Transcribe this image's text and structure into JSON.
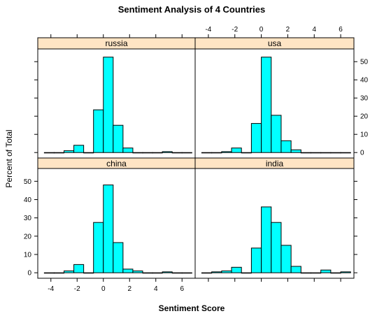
{
  "chart_data": {
    "type": "bar",
    "title": "Sentiment Analysis of 4 Countries",
    "xlabel": "Sentiment Score",
    "ylabel": "Percent of Total",
    "xlim": [
      -5,
      7
    ],
    "ylim": [
      -3,
      57
    ],
    "x_ticks": [
      -4,
      -2,
      0,
      2,
      4,
      6
    ],
    "y_ticks": [
      0,
      10,
      20,
      30,
      40,
      50
    ],
    "bin_edges": [
      -4.5,
      -3.75,
      -3,
      -2.25,
      -1.5,
      -0.75,
      0,
      0.75,
      1.5,
      2.25,
      3,
      3.75,
      4.5,
      5.25,
      6,
      6.75
    ],
    "bar_color": "#00ffff",
    "strip_color": "#ffe4c4",
    "panels": [
      {
        "name": "russia",
        "values": [
          0,
          0,
          1,
          4,
          0,
          23.5,
          52.5,
          15,
          2.5,
          0,
          0,
          0,
          0.5,
          0,
          0
        ]
      },
      {
        "name": "usa",
        "values": [
          0,
          0,
          0.5,
          2.5,
          0,
          16,
          52.5,
          20.5,
          6.5,
          1.5,
          0,
          0,
          0,
          0,
          0
        ]
      },
      {
        "name": "china",
        "values": [
          0,
          0,
          1,
          4.5,
          0,
          27.5,
          48,
          16.5,
          2,
          1,
          0,
          0,
          0.5,
          0,
          0
        ]
      },
      {
        "name": "india",
        "values": [
          0,
          0.5,
          1,
          3,
          0,
          13.5,
          36,
          27.5,
          15,
          3.5,
          0,
          0,
          1.5,
          0,
          0.5
        ]
      }
    ]
  }
}
